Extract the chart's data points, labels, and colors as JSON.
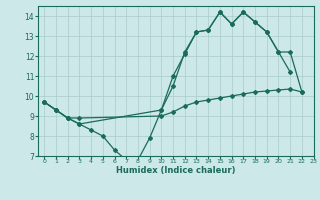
{
  "line1": {
    "x": [
      0,
      1,
      2,
      3,
      4,
      5,
      6,
      7,
      8,
      9,
      10,
      11,
      12,
      13,
      14,
      15,
      16,
      17,
      18,
      19,
      20,
      21
    ],
    "y": [
      9.7,
      9.3,
      8.9,
      8.6,
      8.3,
      8.0,
      7.3,
      6.8,
      6.8,
      7.9,
      9.3,
      10.5,
      12.2,
      13.2,
      13.3,
      14.2,
      13.6,
      14.2,
      13.7,
      13.2,
      12.2,
      11.2
    ]
  },
  "line2": {
    "x": [
      0,
      1,
      2,
      3,
      10,
      11,
      12,
      13,
      14,
      15,
      16,
      17,
      18,
      19,
      20,
      21,
      22
    ],
    "y": [
      9.7,
      9.3,
      8.9,
      8.6,
      9.3,
      11.0,
      12.1,
      13.2,
      13.3,
      14.2,
      13.6,
      14.2,
      13.7,
      13.2,
      12.2,
      12.2,
      10.2
    ]
  },
  "line3": {
    "x": [
      0,
      1,
      2,
      3,
      10,
      11,
      12,
      13,
      14,
      15,
      16,
      17,
      18,
      19,
      20,
      21,
      22
    ],
    "y": [
      9.7,
      9.3,
      8.9,
      8.9,
      9.0,
      9.2,
      9.5,
      9.7,
      9.8,
      9.9,
      10.0,
      10.1,
      10.2,
      10.25,
      10.3,
      10.35,
      10.2
    ]
  },
  "bg_color": "#cce8e8",
  "grid_color": "#aacccc",
  "line_color": "#1a6b5a",
  "xlabel": "Humidex (Indice chaleur)",
  "xlim": [
    -0.5,
    23
  ],
  "ylim": [
    7,
    14.5
  ],
  "xticks": [
    0,
    1,
    2,
    3,
    4,
    5,
    6,
    7,
    8,
    9,
    10,
    11,
    12,
    13,
    14,
    15,
    16,
    17,
    18,
    19,
    20,
    21,
    22,
    23
  ],
  "yticks": [
    7,
    8,
    9,
    10,
    11,
    12,
    13,
    14
  ]
}
